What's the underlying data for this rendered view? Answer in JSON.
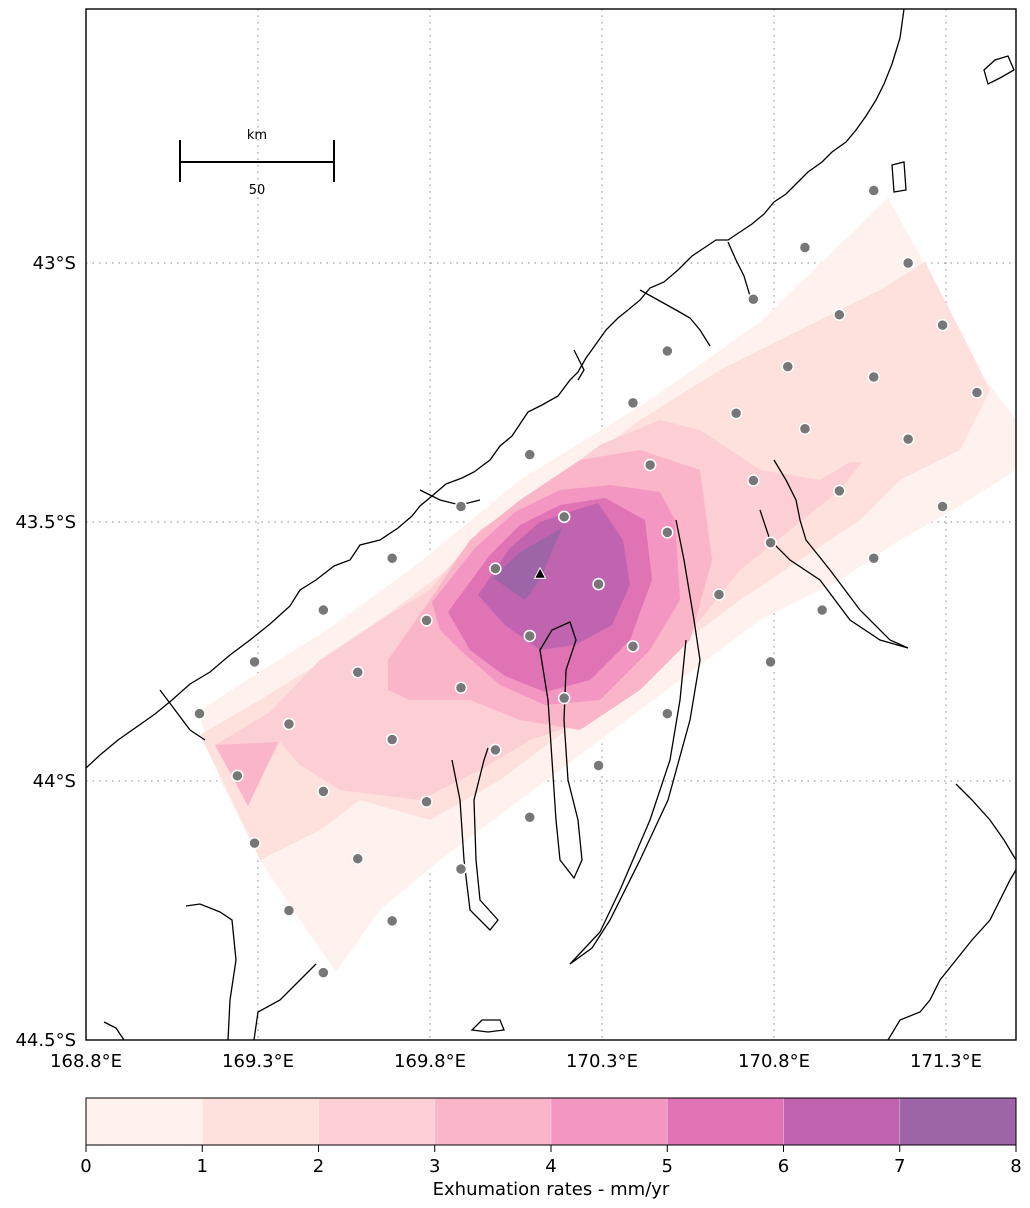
{
  "map": {
    "lon_range": [
      168.8,
      171.5
    ],
    "lat_range": [
      -44.5,
      -42.5
    ],
    "lon_ticks": [
      {
        "value": 168.8,
        "label": "168.8°E"
      },
      {
        "value": 169.3,
        "label": "169.3°E"
      },
      {
        "value": 169.8,
        "label": "169.8°E"
      },
      {
        "value": 170.3,
        "label": "170.3°E"
      },
      {
        "value": 170.8,
        "label": "170.8°E"
      },
      {
        "value": 171.3,
        "label": "171.3°E"
      }
    ],
    "lat_ticks": [
      {
        "value": -43.0,
        "label": "43°S"
      },
      {
        "value": -43.5,
        "label": "43.5°S"
      },
      {
        "value": -44.0,
        "label": "44°S"
      },
      {
        "value": -44.5,
        "label": "44.5°S"
      }
    ],
    "scale_bar": {
      "unit": "km",
      "length": "50"
    },
    "contour_levels": [
      0,
      1,
      2,
      3,
      4,
      5,
      6,
      7,
      8
    ],
    "contour_colors": [
      "#fff1ee",
      "#fee0dd",
      "#fccfd4",
      "#fab5c9",
      "#f396c2",
      "#df73b3",
      "#c164b0",
      "#9e64a8"
    ],
    "station_color": "#777777",
    "peak_marker": {
      "lon": 170.12,
      "lat": -43.6,
      "symbol": "triangle"
    },
    "stations": [
      [
        171.09,
        -42.86
      ],
      [
        170.89,
        -42.97
      ],
      [
        171.19,
        -43.0
      ],
      [
        170.74,
        -43.07
      ],
      [
        170.99,
        -43.1
      ],
      [
        171.29,
        -43.12
      ],
      [
        170.49,
        -43.17
      ],
      [
        170.84,
        -43.2
      ],
      [
        171.09,
        -43.22
      ],
      [
        171.39,
        -43.25
      ],
      [
        170.39,
        -43.27
      ],
      [
        170.69,
        -43.29
      ],
      [
        170.89,
        -43.32
      ],
      [
        171.19,
        -43.34
      ],
      [
        170.09,
        -43.37
      ],
      [
        170.44,
        -43.39
      ],
      [
        170.74,
        -43.42
      ],
      [
        170.99,
        -43.44
      ],
      [
        171.29,
        -43.47
      ],
      [
        169.89,
        -43.47
      ],
      [
        170.19,
        -43.49
      ],
      [
        170.49,
        -43.52
      ],
      [
        169.69,
        -43.57
      ],
      [
        169.99,
        -43.59
      ],
      [
        170.29,
        -43.62
      ],
      [
        170.79,
        -43.54
      ],
      [
        171.09,
        -43.57
      ],
      [
        169.49,
        -43.67
      ],
      [
        169.79,
        -43.69
      ],
      [
        170.09,
        -43.72
      ],
      [
        170.39,
        -43.74
      ],
      [
        170.64,
        -43.64
      ],
      [
        170.94,
        -43.67
      ],
      [
        169.29,
        -43.77
      ],
      [
        169.59,
        -43.79
      ],
      [
        169.89,
        -43.82
      ],
      [
        170.19,
        -43.84
      ],
      [
        170.49,
        -43.87
      ],
      [
        170.79,
        -43.77
      ],
      [
        169.13,
        -43.87
      ],
      [
        169.39,
        -43.89
      ],
      [
        169.69,
        -43.92
      ],
      [
        169.99,
        -43.94
      ],
      [
        170.29,
        -43.97
      ],
      [
        169.24,
        -43.99
      ],
      [
        169.49,
        -44.02
      ],
      [
        169.79,
        -44.04
      ],
      [
        170.09,
        -44.07
      ],
      [
        169.29,
        -44.12
      ],
      [
        169.59,
        -44.15
      ],
      [
        169.89,
        -44.17
      ],
      [
        169.39,
        -44.25
      ],
      [
        169.69,
        -44.27
      ],
      [
        169.49,
        -44.37
      ]
    ]
  },
  "colorbar": {
    "ticks": [
      "0",
      "1",
      "2",
      "3",
      "4",
      "5",
      "6",
      "7",
      "8"
    ],
    "label": "Exhumation rates - mm/yr"
  }
}
